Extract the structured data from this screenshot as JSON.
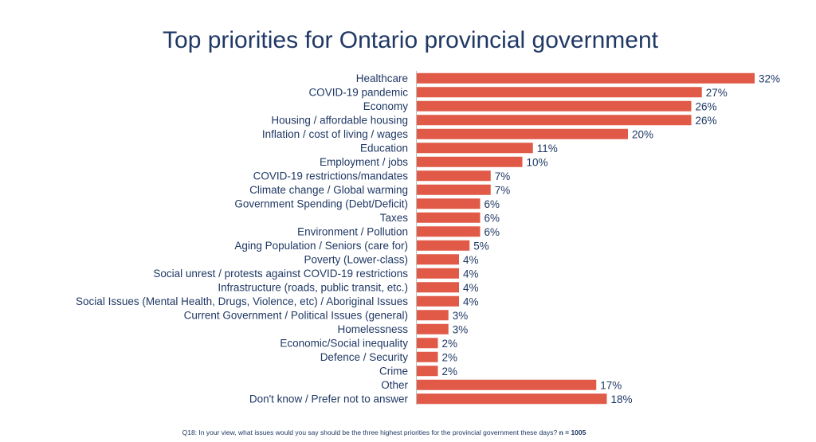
{
  "chart_data": {
    "type": "bar",
    "orientation": "horizontal",
    "title": "Top priorities for Ontario provincial government",
    "xlabel": "",
    "ylabel": "",
    "value_suffix": "%",
    "xlim": [
      0,
      32
    ],
    "grid": false,
    "legend": "none",
    "bar_color": "#e05a47",
    "categories": [
      "Healthcare",
      "COVID-19 pandemic",
      "Economy",
      "Housing / affordable housing",
      "Inflation / cost of living / wages",
      "Education",
      "Employment / jobs",
      "COVID-19 restrictions/mandates",
      "Climate change / Global warming",
      "Government Spending (Debt/Deficit)",
      "Taxes",
      "Environment / Pollution",
      "Aging Population / Seniors (care for)",
      "Poverty (Lower-class)",
      "Social unrest / protests against COVID-19 restrictions",
      "Infrastructure (roads, public transit, etc.)",
      "Social Issues (Mental Health, Drugs, Violence, etc) / Aboriginal Issues",
      "Current Government / Political Issues (general)",
      "Homelessness",
      "Economic/Social inequality",
      "Defence / Security",
      "Crime",
      "Other",
      "Don't know / Prefer not to answer"
    ],
    "values": [
      32,
      27,
      26,
      26,
      20,
      11,
      10,
      7,
      7,
      6,
      6,
      6,
      5,
      4,
      4,
      4,
      4,
      3,
      3,
      2,
      2,
      2,
      17,
      18
    ]
  },
  "footnote": {
    "question": "Q18: In your view,  what issues would you say should be the three highest priorities for the provincial  government  these days? ",
    "sample": "n = 1005"
  },
  "colors": {
    "title": "#1f3864",
    "label": "#1f3864",
    "bar": "#e05a47"
  }
}
